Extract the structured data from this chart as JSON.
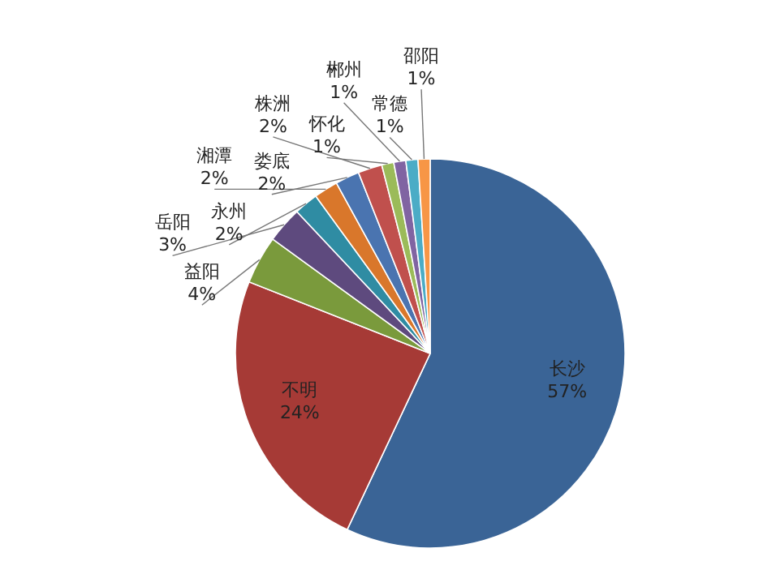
{
  "chart_data": {
    "type": "pie",
    "categories": [
      "长沙",
      "不明",
      "益阳",
      "岳阳",
      "永州",
      "湘潭",
      "娄底",
      "株洲",
      "怀化",
      "郴州",
      "常德",
      "邵阳"
    ],
    "values": [
      57,
      24,
      4,
      3,
      2,
      2,
      2,
      2,
      1,
      1,
      1,
      1
    ],
    "colors": [
      "#3a6496",
      "#a63a36",
      "#7a9a3c",
      "#5e4a7e",
      "#2f8ca3",
      "#d9772b",
      "#4a74b0",
      "#c0504d",
      "#9bbb59",
      "#8064a2",
      "#4bacc6",
      "#f79646"
    ],
    "value_labels": [
      "57%",
      "24%",
      "4%",
      "3%",
      "2%",
      "2%",
      "2%",
      "2%",
      "1%",
      "1%",
      "1%",
      "1%"
    ]
  }
}
